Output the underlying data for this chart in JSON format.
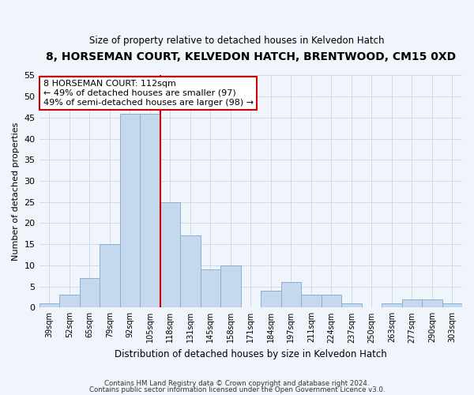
{
  "title": "8, HORSEMAN COURT, KELVEDON HATCH, BRENTWOOD, CM15 0XD",
  "subtitle": "Size of property relative to detached houses in Kelvedon Hatch",
  "xlabel": "Distribution of detached houses by size in Kelvedon Hatch",
  "ylabel": "Number of detached properties",
  "bar_labels": [
    "39sqm",
    "52sqm",
    "65sqm",
    "79sqm",
    "92sqm",
    "105sqm",
    "118sqm",
    "131sqm",
    "145sqm",
    "158sqm",
    "171sqm",
    "184sqm",
    "197sqm",
    "211sqm",
    "224sqm",
    "237sqm",
    "250sqm",
    "263sqm",
    "277sqm",
    "290sqm",
    "303sqm"
  ],
  "bar_values": [
    1,
    3,
    7,
    15,
    46,
    46,
    25,
    17,
    9,
    10,
    0,
    4,
    6,
    3,
    3,
    1,
    0,
    1,
    2,
    2,
    1
  ],
  "bar_color": "#c5d8ee",
  "bar_edge_color": "#8ab0d0",
  "vline_index": 5.5,
  "vline_color": "#cc0000",
  "annotation_line1": "8 HORSEMAN COURT: 112sqm",
  "annotation_line2": "← 49% of detached houses are smaller (97)",
  "annotation_line3": "49% of semi-detached houses are larger (98) →",
  "annotation_box_color": "#ffffff",
  "annotation_box_edge_color": "#cc0000",
  "ylim": [
    0,
    55
  ],
  "yticks": [
    0,
    5,
    10,
    15,
    20,
    25,
    30,
    35,
    40,
    45,
    50,
    55
  ],
  "footer1": "Contains HM Land Registry data © Crown copyright and database right 2024.",
  "footer2": "Contains public sector information licensed under the Open Government Licence v3.0.",
  "bg_color": "#f0f4fb",
  "grid_color": "#c8d4e8"
}
